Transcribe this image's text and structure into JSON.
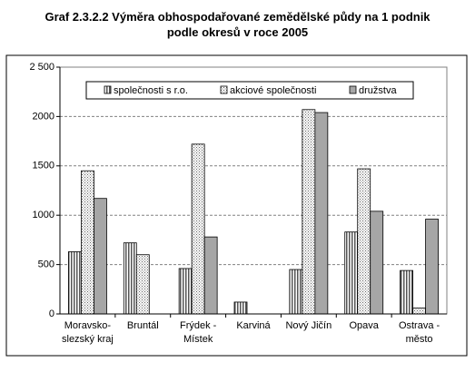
{
  "chart_data": {
    "type": "bar",
    "title": "Graf 2.3.2.2 Výměra obhospodařované zemědělské půdy na 1 podnik\npodle okresů v roce 2005",
    "categories": [
      "Moravsko-\nslezský kraj",
      "Bruntál",
      "Frýdek -\nMístek",
      "Karviná",
      "Nový Jičín",
      "Opava",
      "Ostrava -\nměsto"
    ],
    "series": [
      {
        "name": "společnosti s r.o.",
        "color": "#808080",
        "values": [
          630,
          720,
          460,
          120,
          450,
          830,
          440
        ]
      },
      {
        "name": "akciové společnosti",
        "color": "#ffffff",
        "values": [
          1450,
          600,
          1720,
          null,
          2070,
          1470,
          60
        ]
      },
      {
        "name": "družstva",
        "color": "#a6a6a6",
        "values": [
          1170,
          null,
          780,
          null,
          2040,
          1040,
          960
        ]
      }
    ],
    "ylim": [
      0,
      2500
    ],
    "yticks": [
      0,
      500,
      1000,
      1500,
      2000,
      {
        "value": 2500,
        "label": "2 500"
      }
    ],
    "grid": true
  }
}
